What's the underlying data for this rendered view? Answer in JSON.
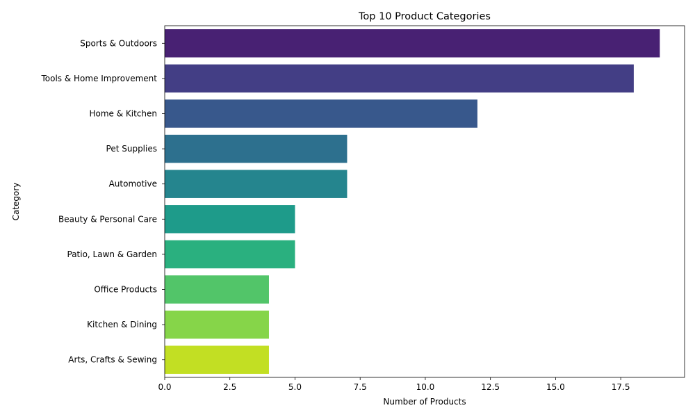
{
  "chart_data": {
    "type": "bar",
    "orientation": "horizontal",
    "title": "Top 10 Product Categories",
    "xlabel": "Number of Products",
    "ylabel": "Category",
    "categories": [
      "Sports & Outdoors",
      "Tools & Home Improvement",
      "Home & Kitchen",
      "Pet Supplies",
      "Automotive",
      "Beauty & Personal Care",
      "Patio, Lawn & Garden",
      "Office Products",
      "Kitchen & Dining",
      "Arts, Crafts & Sewing"
    ],
    "values": [
      19,
      18,
      12,
      7,
      7,
      5,
      5,
      4,
      4,
      4
    ],
    "colors": [
      "#482173",
      "#433e85",
      "#38588c",
      "#2d708e",
      "#25858e",
      "#1e9b8a",
      "#2ab07f",
      "#52c569",
      "#86d549",
      "#c2df23"
    ],
    "xlim": [
      0,
      19.95
    ],
    "xticks": [
      0.0,
      2.5,
      5.0,
      7.5,
      10.0,
      12.5,
      15.0,
      17.5
    ],
    "xtick_labels": [
      "0.0",
      "2.5",
      "5.0",
      "7.5",
      "10.0",
      "12.5",
      "15.0",
      "17.5"
    ],
    "grid": false,
    "legend": "none"
  }
}
